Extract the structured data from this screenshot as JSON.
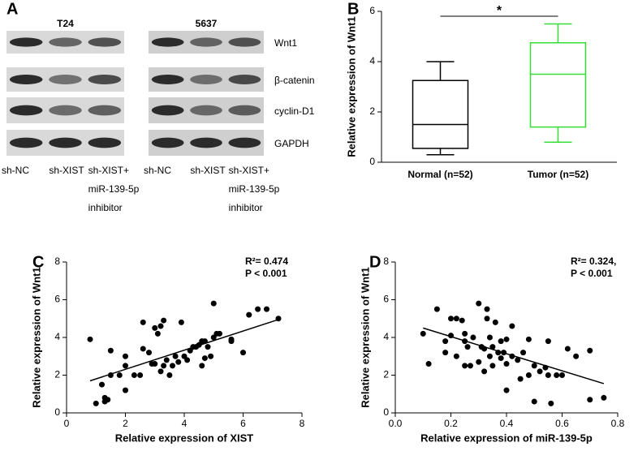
{
  "blot": {
    "panel_label": "A",
    "groups": [
      {
        "title": "T24",
        "lanes": [
          [
            "sh-NC"
          ],
          [
            "sh-XIST"
          ],
          [
            "sh-XIST+",
            "miR-139-5p",
            "inhibitor"
          ]
        ]
      },
      {
        "title": "5637",
        "lanes": [
          [
            "sh-NC"
          ],
          [
            "sh-XIST"
          ],
          [
            "sh-XIST+",
            "miR-139-5p",
            "inhibitor"
          ]
        ]
      }
    ],
    "proteins": [
      "Wnt1",
      "β-catenin",
      "cyclin-D1",
      "GAPDH"
    ]
  },
  "chart_data": [
    {
      "type": "box",
      "panel_label": "B",
      "ylabel": "Relative expression of Wnt1",
      "ylim": [
        0,
        6
      ],
      "yticks": [
        0,
        2,
        4,
        6
      ],
      "significance": "*",
      "boxes": [
        {
          "name": "Normal (n=52)",
          "color": "#000000",
          "min": 0.3,
          "q1": 0.55,
          "median": 1.5,
          "q3": 3.25,
          "max": 4.0
        },
        {
          "name": "Tumor (n=52)",
          "color": "#33dd33",
          "min": 0.8,
          "q1": 1.4,
          "median": 3.5,
          "q3": 4.75,
          "max": 5.5
        }
      ]
    },
    {
      "type": "scatter",
      "panel_label": "C",
      "xlabel": "Relative expression of XIST",
      "ylabel": "Relative expression of Wnt1",
      "xlim": [
        0,
        8
      ],
      "xticks": [
        0,
        2,
        4,
        6,
        8
      ],
      "ylim": [
        0,
        8
      ],
      "yticks": [
        0,
        2,
        4,
        6,
        8
      ],
      "annotations": [
        "R²= 0.474",
        "P < 0.001"
      ],
      "color": "#000000",
      "x": [
        0.8,
        1.0,
        1.2,
        1.3,
        1.3,
        1.4,
        1.5,
        1.5,
        1.8,
        2.0,
        2.0,
        2.0,
        2.3,
        2.5,
        2.6,
        2.6,
        2.8,
        2.9,
        3.0,
        3.0,
        3.1,
        3.2,
        3.2,
        3.3,
        3.3,
        3.4,
        3.5,
        3.6,
        3.7,
        3.8,
        3.9,
        4.0,
        4.1,
        4.2,
        4.3,
        4.4,
        4.5,
        4.6,
        4.7,
        4.8,
        4.9,
        5.0,
        5.0,
        5.1,
        5.2,
        5.6,
        5.6,
        6.0,
        6.2,
        6.5,
        6.8,
        7.2,
        4.6,
        4.7
      ],
      "y": [
        3.9,
        0.5,
        1.5,
        0.8,
        0.6,
        0.7,
        2.0,
        3.3,
        2.0,
        2.5,
        3.0,
        1.2,
        2.0,
        2.0,
        3.4,
        4.8,
        3.2,
        2.6,
        2.6,
        4.5,
        4.2,
        2.2,
        4.6,
        2.5,
        4.9,
        2.8,
        2.0,
        2.5,
        3.0,
        2.7,
        4.8,
        3.0,
        2.8,
        3.3,
        3.5,
        3.5,
        3.6,
        3.8,
        3.8,
        3.5,
        3.0,
        4.0,
        5.8,
        4.2,
        4.2,
        3.8,
        3.9,
        3.2,
        5.2,
        5.5,
        5.5,
        5.0,
        2.5,
        2.9
      ],
      "fit": {
        "x": [
          0.8,
          7.2
        ],
        "y": [
          1.7,
          4.95
        ]
      }
    },
    {
      "type": "scatter",
      "panel_label": "D",
      "xlabel": "Relative expression of miR-139-5p",
      "ylabel": "Relative expression of Wnt1",
      "xlim": [
        0,
        0.8
      ],
      "xticks": [
        {
          "value": 0,
          "label": "0.0"
        },
        0.2,
        0.4,
        0.6,
        0.8
      ],
      "ylim": [
        0,
        8
      ],
      "yticks": [
        0,
        2,
        4,
        6,
        8
      ],
      "annotations": [
        "R²= 0.324,",
        "P < 0.001"
      ],
      "color": "#000000",
      "x": [
        0.1,
        0.12,
        0.15,
        0.18,
        0.18,
        0.2,
        0.2,
        0.22,
        0.22,
        0.24,
        0.25,
        0.25,
        0.25,
        0.26,
        0.27,
        0.28,
        0.3,
        0.3,
        0.31,
        0.32,
        0.32,
        0.33,
        0.33,
        0.34,
        0.34,
        0.35,
        0.35,
        0.36,
        0.37,
        0.38,
        0.38,
        0.39,
        0.4,
        0.4,
        0.42,
        0.42,
        0.44,
        0.45,
        0.46,
        0.48,
        0.48,
        0.5,
        0.5,
        0.52,
        0.54,
        0.55,
        0.55,
        0.56,
        0.58,
        0.6,
        0.62,
        0.65,
        0.7,
        0.7,
        0.75,
        0.4
      ],
      "y": [
        4.2,
        2.6,
        5.5,
        3.2,
        3.8,
        5.0,
        4.1,
        5.0,
        3.0,
        4.9,
        4.2,
        3.8,
        2.5,
        3.5,
        2.5,
        4.0,
        2.7,
        5.8,
        3.5,
        3.4,
        2.2,
        5.0,
        5.5,
        4.0,
        3.0,
        3.5,
        2.5,
        4.8,
        3.2,
        3.8,
        2.9,
        3.2,
        3.9,
        1.2,
        3.0,
        4.6,
        2.8,
        1.8,
        3.2,
        2.0,
        3.9,
        0.6,
        2.5,
        2.2,
        2.4,
        2.0,
        3.8,
        0.5,
        2.0,
        2.0,
        3.4,
        3.0,
        3.3,
        0.7,
        0.8,
        2.6
      ],
      "fit": {
        "x": [
          0.1,
          0.75
        ],
        "y": [
          4.5,
          1.55
        ]
      }
    }
  ]
}
